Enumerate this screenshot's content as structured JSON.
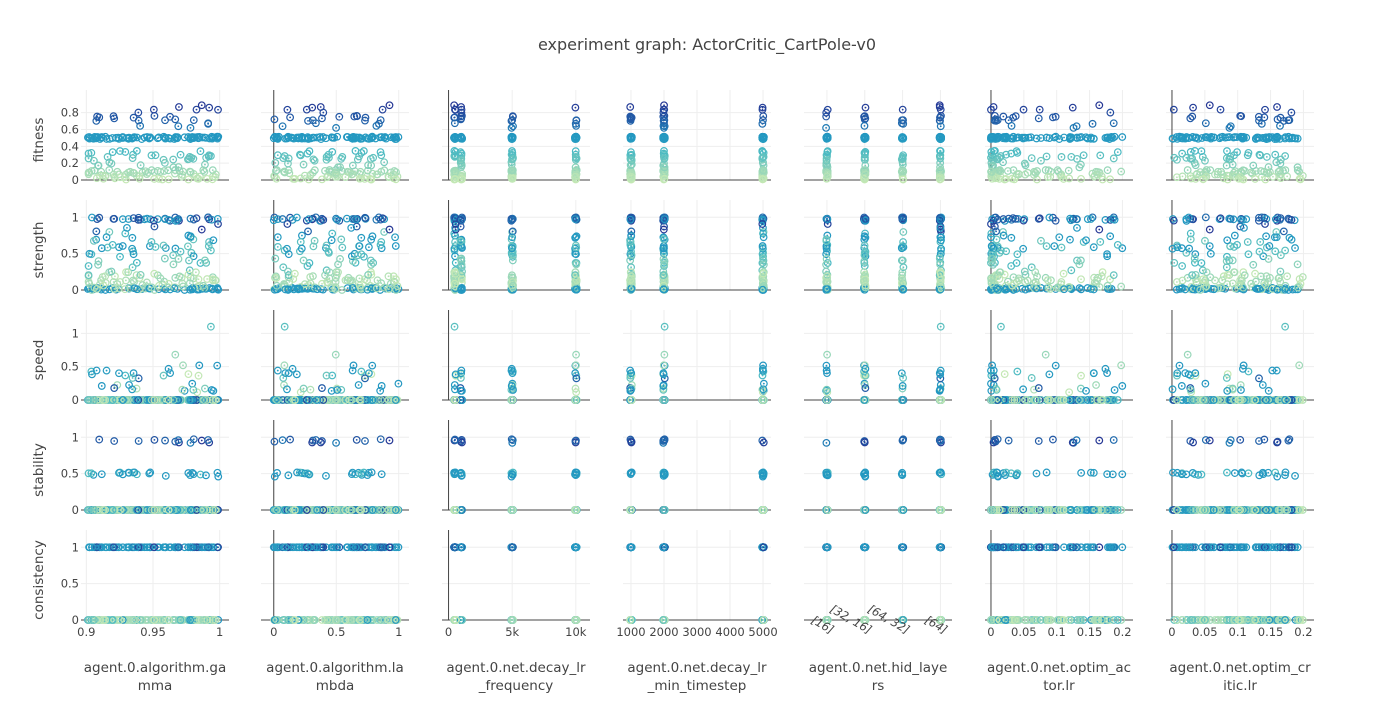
{
  "chart_data": {
    "type": "scatter",
    "title": "experiment graph: ActorCritic_CartPole-v0",
    "marker": "circle-dot (open)",
    "colorscale": [
      "#c7e9b4",
      "#7fcdbb",
      "#41b6c4",
      "#1d91c0",
      "#225ea8",
      "#253494"
    ],
    "colorscale_note": "points colored by fitness (low = light green, high = dark blue)",
    "rows": [
      {
        "name": "fitness",
        "ylabel": "fitness",
        "ylim": [
          0,
          0.95
        ],
        "ticks": [
          0,
          0.2,
          0.4,
          0.6,
          0.8
        ],
        "tick_labels": [
          "0",
          "0.2",
          "0.4",
          "0.6",
          "0.8"
        ]
      },
      {
        "name": "strength",
        "ylabel": "strength",
        "ylim": [
          0,
          1.1
        ],
        "ticks": [
          0,
          0.5,
          1
        ],
        "tick_labels": [
          "0",
          "0.5",
          "1"
        ]
      },
      {
        "name": "speed",
        "ylabel": "speed",
        "ylim": [
          0,
          1.2
        ],
        "ticks": [
          0,
          0.5,
          1
        ],
        "tick_labels": [
          "0",
          "0.5",
          "1"
        ]
      },
      {
        "name": "stability",
        "ylabel": "stability",
        "ylim": [
          0,
          1.1
        ],
        "ticks": [
          0,
          0.5,
          1
        ],
        "tick_labels": [
          "0",
          "0.5",
          "1"
        ]
      },
      {
        "name": "consistency",
        "ylabel": "consistency",
        "ylim": [
          0,
          1.1
        ],
        "ticks": [
          0,
          0.5,
          1
        ],
        "tick_labels": [
          "0",
          "0.5",
          "1"
        ]
      }
    ],
    "columns": [
      {
        "name": "gamma",
        "xlabel_lines": [
          "agent.0.algorithm.ga",
          "mma"
        ],
        "type": "linear",
        "xlim": [
          0.899,
          1.004
        ],
        "ticks": [
          0.9,
          0.95,
          1
        ],
        "tick_labels": [
          "0.9",
          "0.95",
          "1"
        ],
        "x_values": "uniform",
        "x_range": [
          0.9,
          1.0
        ]
      },
      {
        "name": "lambda",
        "xlabel_lines": [
          "agent.0.algorithm.la",
          "mbda"
        ],
        "type": "linear",
        "xlim": [
          -0.07,
          1.05
        ],
        "ticks": [
          0,
          0.5,
          1
        ],
        "tick_labels": [
          "0",
          "0.5",
          "1"
        ],
        "x_values": "uniform",
        "x_range": [
          0,
          1
        ]
      },
      {
        "name": "decay_lr_frequency",
        "xlabel_lines": [
          "agent.0.net.decay_lr",
          "_frequency"
        ],
        "type": "linear",
        "xlim": [
          -200,
          10800
        ],
        "ticks": [
          0,
          5000,
          10000
        ],
        "tick_labels": [
          "0",
          "5k",
          "10k"
        ],
        "x_values": "discrete",
        "x_levels": [
          500,
          1000,
          5000,
          10000
        ]
      },
      {
        "name": "decay_lr_min_timestep",
        "xlabel_lines": [
          "agent.0.net.decay_lr",
          "_min_timestep"
        ],
        "type": "linear",
        "xlim": [
          880,
          5120
        ],
        "ticks": [
          1000,
          2000,
          3000,
          4000,
          5000
        ],
        "tick_labels": [
          "1000",
          "2000",
          "3000",
          "4000",
          "5000"
        ],
        "x_values": "discrete",
        "x_levels": [
          1000,
          2000,
          5000
        ]
      },
      {
        "name": "hid_layers",
        "xlabel_lines": [
          "agent.0.net.hid_laye",
          "rs"
        ],
        "type": "category",
        "xlim": [
          -0.5,
          3.2
        ],
        "ticks": [
          0,
          1,
          2,
          3
        ],
        "tick_labels": [
          "[16]",
          "[32, 16]",
          "[64, 32]",
          "[64]"
        ],
        "x_values": "discrete",
        "x_levels": [
          0,
          1,
          2,
          3
        ]
      },
      {
        "name": "optim_actor_lr",
        "xlabel_lines": [
          "agent.0.net.optim_ac",
          "tor.lr"
        ],
        "type": "linear",
        "xlim": [
          -0.003,
          0.21
        ],
        "ticks": [
          0,
          0.05,
          0.1,
          0.15,
          0.2
        ],
        "tick_labels": [
          "0",
          "0.05",
          "0.1",
          "0.15",
          "0.2"
        ],
        "x_values": "skewed-low",
        "x_range": [
          0.0001,
          0.2
        ]
      },
      {
        "name": "optim_critic_lr",
        "xlabel_lines": [
          "agent.0.net.optim_cr",
          "itic.lr"
        ],
        "type": "linear",
        "xlim": [
          -0.003,
          0.21
        ],
        "ticks": [
          0,
          0.05,
          0.1,
          0.15,
          0.2
        ],
        "tick_labels": [
          "0",
          "0.05",
          "0.1",
          "0.15",
          "0.2"
        ],
        "x_values": "uniform",
        "x_range": [
          0.0001,
          0.2
        ]
      }
    ],
    "trials_approx": 200,
    "observed_value_patterns": {
      "fitness": "cluster at ~0.5; scattered 0.6-0.9; many 0-0.35",
      "strength": "cluster at ~1.0 and ~0; scattered 0.2-0.8",
      "speed": "mostly 0; few 0.1-0.7; one outlier ~1.1",
      "stability": "three levels: 0, ~0.5, ~1.0",
      "consistency": "two levels: 0 and 1"
    },
    "grid": true,
    "legend": "none"
  }
}
